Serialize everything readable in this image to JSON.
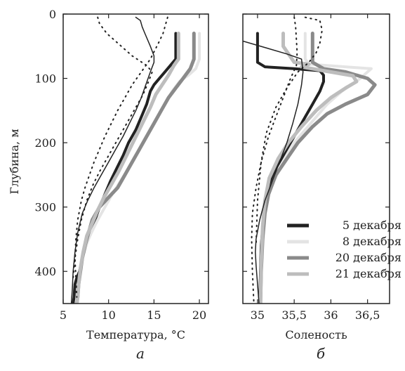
{
  "y_axis_label": "Глубина, м",
  "chart_data": [
    {
      "type": "line",
      "panel_letter": "а",
      "xlabel": "Температура, °C",
      "ylabel": "Глубина, м",
      "xlim": [
        5,
        21
      ],
      "ylim": [
        0,
        450
      ],
      "y_inverted": true,
      "xticks": [
        "5",
        "10",
        "15",
        "20"
      ],
      "yticks": [
        "0",
        "100",
        "200",
        "300",
        "400"
      ],
      "grid": false,
      "series": [
        {
          "name": "5 декабря",
          "color": "#222222",
          "width": 4,
          "x": [
            17.4,
            17.4,
            17.4,
            16.8,
            16.2,
            15.6,
            15.0,
            14.6,
            14.2,
            13.6,
            13.0,
            12.2,
            11.6,
            10.9,
            10.2,
            9.6,
            9.0,
            8.5,
            8.0,
            7.5,
            7.1,
            6.8,
            6.5,
            6.3,
            6.2,
            6.1
          ],
          "y": [
            30,
            50,
            70,
            80,
            90,
            100,
            110,
            120,
            140,
            160,
            180,
            200,
            220,
            240,
            260,
            280,
            300,
            320,
            340,
            360,
            380,
            400,
            410,
            420,
            440,
            450
          ]
        },
        {
          "name": "8 декабря",
          "color": "#e4e4e4",
          "width": 4,
          "x": [
            20.0,
            20.0,
            20.0,
            19.6,
            18.8,
            17.8,
            17.0,
            16.2,
            15.4,
            14.6,
            13.8,
            13.0,
            12.2,
            11.3,
            10.4,
            9.6,
            8.8,
            8.1,
            7.5,
            7.1,
            6.9,
            6.7,
            6.6,
            6.5
          ],
          "y": [
            30,
            50,
            70,
            85,
            95,
            105,
            120,
            140,
            160,
            180,
            200,
            220,
            240,
            260,
            280,
            300,
            320,
            340,
            360,
            380,
            400,
            420,
            440,
            450
          ]
        },
        {
          "name": "20 декабря",
          "color": "#8a8a8a",
          "width": 5,
          "x": [
            19.4,
            19.4,
            19.4,
            19.0,
            18.2,
            17.4,
            16.6,
            15.8,
            15.0,
            14.2,
            13.4,
            12.6,
            11.8,
            11.0,
            10.0,
            9.0,
            8.2,
            7.8,
            7.4,
            7.1,
            6.9,
            6.7,
            6.6,
            6.5
          ],
          "y": [
            30,
            50,
            70,
            85,
            100,
            115,
            130,
            150,
            170,
            190,
            210,
            230,
            250,
            270,
            285,
            300,
            320,
            340,
            360,
            380,
            400,
            420,
            440,
            450
          ]
        },
        {
          "name": "21 декабря",
          "color": "#bdbdbd",
          "width": 5,
          "x": [
            17.7,
            17.7,
            17.7,
            17.2,
            16.6,
            15.9,
            15.2,
            14.6,
            13.9,
            13.2,
            12.5,
            11.8,
            11.1,
            10.3,
            9.5,
            8.8,
            8.2,
            7.6,
            7.2,
            6.9,
            6.7,
            6.6,
            6.5
          ],
          "y": [
            30,
            50,
            70,
            80,
            95,
            110,
            125,
            145,
            165,
            185,
            205,
            225,
            245,
            265,
            285,
            305,
            325,
            345,
            370,
            395,
            420,
            440,
            450
          ]
        },
        {
          "name": "",
          "color": "#222222",
          "width": 1.5,
          "dash": "",
          "x": [
            13.0,
            13.5,
            13.7,
            14.0,
            14.6,
            15.0,
            15.0,
            14.6,
            14.1,
            13.6,
            13.0,
            12.3,
            11.6,
            10.8,
            10.0,
            9.2,
            8.4,
            7.7,
            7.1,
            6.6,
            6.3,
            6.1,
            6.0,
            5.9
          ],
          "y": [
            5,
            10,
            20,
            30,
            50,
            65,
            75,
            90,
            110,
            130,
            150,
            170,
            190,
            210,
            230,
            250,
            270,
            290,
            310,
            340,
            370,
            400,
            430,
            450
          ]
        },
        {
          "name": "",
          "color": "#222222",
          "width": 2,
          "dash": "1.5,6",
          "x": [
            16.5,
            16.3,
            16.0,
            15.5,
            14.6,
            13.6,
            12.6,
            11.8,
            11.0,
            10.3,
            9.6,
            9.0,
            8.4,
            7.9,
            7.4,
            7.0,
            6.6,
            6.4,
            6.3,
            6.4,
            6.5
          ],
          "y": [
            5,
            15,
            30,
            45,
            70,
            90,
            110,
            130,
            150,
            170,
            190,
            210,
            230,
            250,
            270,
            290,
            320,
            350,
            380,
            410,
            440
          ]
        },
        {
          "name": "",
          "color": "#222222",
          "width": 2,
          "dash": "1.5,6",
          "x": [
            8.8,
            9.0,
            9.8,
            11.0,
            12.6,
            14.2,
            14.8,
            14.4,
            13.8,
            13.0,
            12.2,
            11.4,
            10.6,
            9.8,
            9.0,
            8.3,
            7.6,
            7.0,
            6.6,
            6.3,
            6.1
          ],
          "y": [
            5,
            15,
            30,
            45,
            65,
            80,
            90,
            105,
            125,
            145,
            165,
            185,
            205,
            225,
            245,
            265,
            290,
            320,
            350,
            380,
            410
          ]
        }
      ]
    },
    {
      "type": "line",
      "panel_letter": "б",
      "xlabel": "Соленость",
      "xlim": [
        34.8,
        36.8
      ],
      "ylim": [
        0,
        450
      ],
      "y_inverted": true,
      "xticks": [
        "35",
        "35,5",
        "36",
        "36,5"
      ],
      "grid": false,
      "legend_position": "bottom-right",
      "legend": [
        {
          "label": "5 декабря",
          "color": "#222222"
        },
        {
          "label": "8 декабря",
          "color": "#e4e4e4"
        },
        {
          "label": "20 декабря",
          "color": "#8a8a8a"
        },
        {
          "label": "21 декабря",
          "color": "#bdbdbd"
        }
      ],
      "series": [
        {
          "name": "5 декабря",
          "color": "#222222",
          "width": 4,
          "x": [
            35.0,
            35.0,
            35.0,
            35.1,
            35.5,
            35.85,
            35.9,
            35.9,
            35.85,
            35.75,
            35.65,
            35.55,
            35.45,
            35.35,
            35.25,
            35.18,
            35.12,
            35.08,
            35.05,
            35.04,
            35.03
          ],
          "y": [
            30,
            50,
            75,
            82,
            85,
            88,
            95,
            105,
            120,
            140,
            160,
            180,
            200,
            220,
            240,
            260,
            290,
            320,
            360,
            400,
            450
          ]
        },
        {
          "name": "8 декабря",
          "color": "#e4e4e4",
          "width": 4,
          "x": [
            35.65,
            35.65,
            35.65,
            35.7,
            36.2,
            36.55,
            36.4,
            36.15,
            35.95,
            35.8,
            35.65,
            35.5,
            35.35,
            35.22,
            35.12,
            35.07,
            35.05,
            35.04
          ],
          "y": [
            30,
            50,
            70,
            78,
            82,
            85,
            100,
            120,
            140,
            160,
            180,
            200,
            230,
            260,
            290,
            330,
            380,
            450
          ]
        },
        {
          "name": "20 декабря",
          "color": "#8a8a8a",
          "width": 5,
          "x": [
            35.75,
            35.75,
            35.75,
            35.9,
            36.2,
            36.5,
            36.6,
            36.5,
            36.2,
            35.95,
            35.75,
            35.55,
            35.4,
            35.25,
            35.15,
            35.1,
            35.07,
            35.05,
            35.04
          ],
          "y": [
            30,
            50,
            75,
            85,
            90,
            100,
            110,
            125,
            140,
            155,
            175,
            200,
            225,
            250,
            280,
            310,
            350,
            400,
            450
          ]
        },
        {
          "name": "21 декабря",
          "color": "#bdbdbd",
          "width": 5,
          "x": [
            35.35,
            35.35,
            35.5,
            35.7,
            35.6,
            35.9,
            36.3,
            36.35,
            36.2,
            36.0,
            35.8,
            35.6,
            35.42,
            35.28,
            35.16,
            35.1,
            35.07,
            35.05,
            35.04
          ],
          "y": [
            30,
            50,
            75,
            78,
            82,
            88,
            96,
            105,
            115,
            130,
            150,
            175,
            200,
            225,
            255,
            290,
            330,
            390,
            450
          ]
        },
        {
          "name": "",
          "color": "#222222",
          "width": 1.5,
          "dash": "",
          "x": [
            34.8,
            35.1,
            35.4,
            35.6,
            35.62,
            35.6,
            35.55,
            35.48,
            35.4,
            35.3,
            35.2,
            35.1,
            35.03,
            34.98,
            34.97,
            34.98,
            35.0,
            35.02
          ],
          "y": [
            42,
            52,
            62,
            70,
            90,
            110,
            140,
            170,
            200,
            230,
            260,
            290,
            320,
            350,
            370,
            390,
            420,
            450
          ]
        },
        {
          "name": "",
          "color": "#222222",
          "width": 2,
          "dash": "1.5,6",
          "x": [
            35.5,
            35.52,
            35.53,
            35.54,
            35.53,
            35.45,
            35.35,
            35.25,
            35.15,
            35.05,
            34.98,
            34.93,
            34.92,
            34.93,
            34.95
          ],
          "y": [
            5,
            20,
            40,
            60,
            80,
            100,
            130,
            160,
            190,
            230,
            270,
            310,
            350,
            400,
            450
          ]
        },
        {
          "name": "",
          "color": "#222222",
          "width": 2,
          "dash": "1.5,6",
          "x": [
            35.65,
            35.85,
            35.88,
            35.85,
            35.8,
            35.7,
            35.55,
            35.4,
            35.25,
            35.12,
            35.05,
            35.0,
            34.98
          ],
          "y": [
            5,
            10,
            25,
            45,
            60,
            75,
            90,
            115,
            145,
            185,
            230,
            290,
            360
          ]
        }
      ]
    }
  ]
}
